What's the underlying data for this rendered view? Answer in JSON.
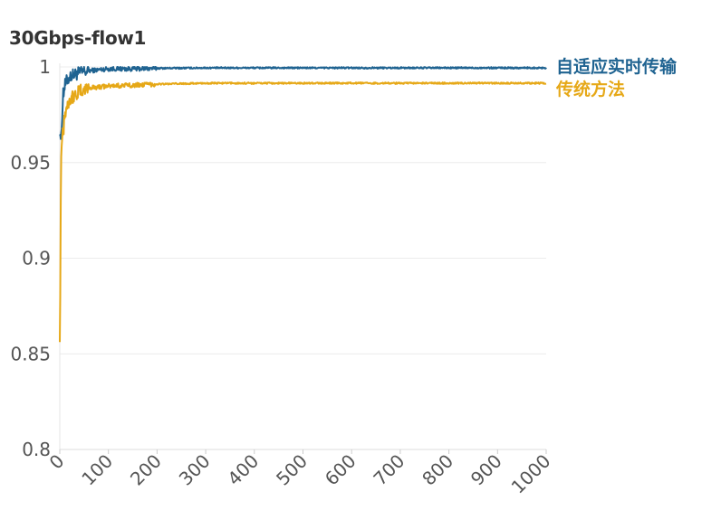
{
  "chart_data": {
    "type": "line",
    "title": "30Gbps-flow1",
    "xlabel": "",
    "ylabel": "",
    "xlim": [
      0,
      1000
    ],
    "ylim": [
      0.8,
      1.0
    ],
    "x_ticks": [
      0,
      100,
      200,
      300,
      400,
      500,
      600,
      700,
      800,
      900,
      1000
    ],
    "y_ticks": [
      {
        "value": 0.8,
        "label": "0.8"
      },
      {
        "value": 0.85,
        "label": "0.85"
      },
      {
        "value": 0.9,
        "label": "0.9"
      },
      {
        "value": 0.95,
        "label": "0.95"
      },
      {
        "value": 1.0,
        "label": "1"
      }
    ],
    "grid": "horizontal",
    "legend_placement": "right, at line ends",
    "series": [
      {
        "name": "自适应实时传输",
        "color": "#1f6391",
        "x": [
          0,
          3,
          6,
          10,
          15,
          20,
          30,
          40,
          60,
          80,
          100,
          150,
          200,
          300,
          400,
          600,
          800,
          1000
        ],
        "values": [
          0.97,
          0.96,
          0.985,
          0.99,
          0.993,
          0.995,
          0.996,
          0.997,
          0.998,
          0.9985,
          0.999,
          0.999,
          0.9993,
          0.9995,
          0.9995,
          0.9995,
          0.9995,
          0.9995
        ]
      },
      {
        "name": "传统方法",
        "color": "#e6a817",
        "x": [
          0,
          1,
          2,
          3,
          5,
          8,
          10,
          15,
          20,
          30,
          40,
          60,
          80,
          100,
          150,
          200,
          300,
          400,
          600,
          800,
          1000
        ],
        "values": [
          0.862,
          0.88,
          0.93,
          0.955,
          0.965,
          0.97,
          0.975,
          0.98,
          0.983,
          0.985,
          0.987,
          0.989,
          0.9895,
          0.99,
          0.9905,
          0.991,
          0.9915,
          0.9915,
          0.9915,
          0.9915,
          0.9915
        ]
      }
    ]
  }
}
